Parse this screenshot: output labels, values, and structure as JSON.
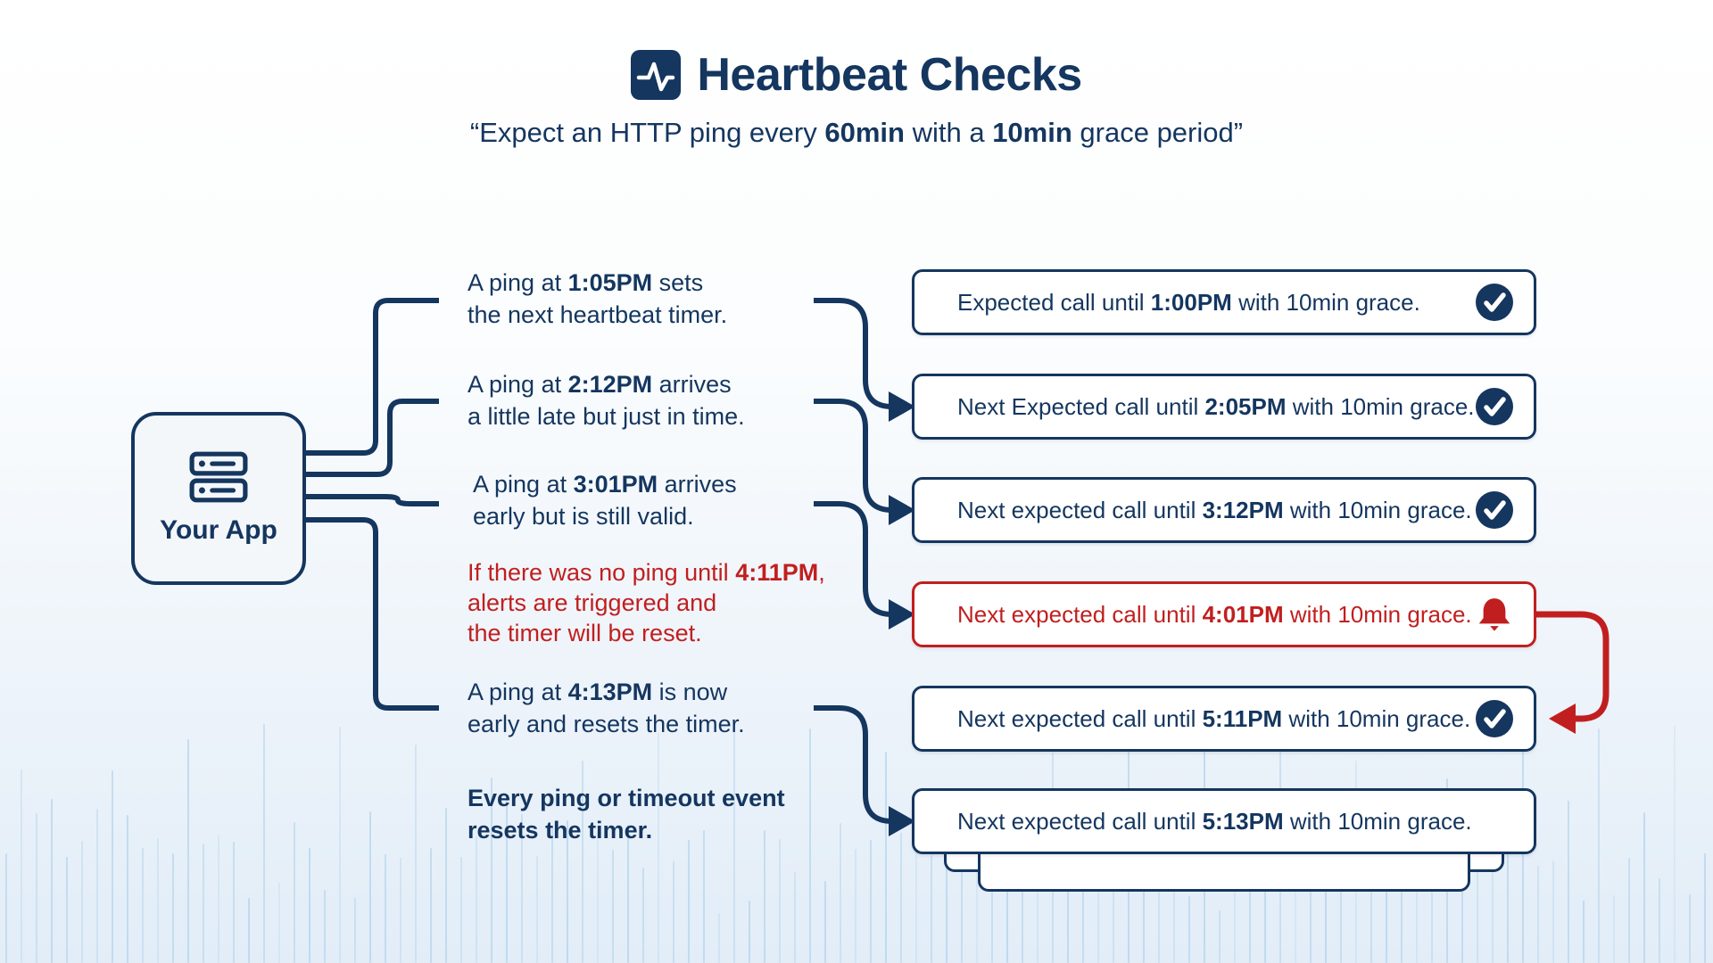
{
  "title": {
    "text": "Heartbeat Checks",
    "icon": "pulse-icon"
  },
  "subtitle": {
    "segments": [
      {
        "t": "“Expect an HTTP ping every "
      },
      {
        "t": "60min",
        "b": 1
      },
      {
        "t": " with a "
      },
      {
        "t": "10min",
        "b": 1
      },
      {
        "t": " grace period”"
      }
    ]
  },
  "app": {
    "label": "Your App",
    "icon": "server-icon"
  },
  "events": [
    {
      "tone": "navy",
      "lines": [
        [
          {
            "t": "A ping at "
          },
          {
            "t": "1:05PM",
            "b": 1
          },
          {
            "t": " sets"
          }
        ],
        [
          {
            "t": "the next heartbeat timer."
          }
        ]
      ]
    },
    {
      "tone": "navy",
      "lines": [
        [
          {
            "t": "A ping at "
          },
          {
            "t": "2:12PM",
            "b": 1
          },
          {
            "t": " arrives"
          }
        ],
        [
          {
            "t": "a little late but just in time."
          }
        ]
      ]
    },
    {
      "tone": "navy",
      "lines": [
        [
          {
            "t": "A ping at "
          },
          {
            "t": "3:01PM",
            "b": 1
          },
          {
            "t": " arrives"
          }
        ],
        [
          {
            "t": "early but is still valid."
          }
        ]
      ]
    },
    {
      "tone": "red",
      "lines": [
        [
          {
            "t": "If there was no ping until "
          },
          {
            "t": "4:11PM",
            "b": 1
          },
          {
            "t": ","
          }
        ],
        [
          {
            "t": "alerts are triggered and"
          }
        ],
        [
          {
            "t": "the timer will be reset."
          }
        ]
      ]
    },
    {
      "tone": "navy",
      "lines": [
        [
          {
            "t": "A ping at "
          },
          {
            "t": "4:13PM",
            "b": 1
          },
          {
            "t": " is now"
          }
        ],
        [
          {
            "t": "early and resets the timer."
          }
        ]
      ]
    },
    {
      "tone": "navy",
      "lines": [
        [
          {
            "t": "Every ping or timeout event",
            "b": 1
          }
        ],
        [
          {
            "t": "resets the timer.",
            "b": 1
          }
        ]
      ]
    }
  ],
  "boxes": [
    {
      "icon": "check-badge-icon",
      "tone": "navy",
      "segments": [
        {
          "t": "Expected call until "
        },
        {
          "t": "1:00PM",
          "b": 1
        },
        {
          "t": " with 10min grace."
        }
      ]
    },
    {
      "icon": "check-badge-icon",
      "tone": "navy",
      "segments": [
        {
          "t": "Next Expected call until "
        },
        {
          "t": "2:05PM",
          "b": 1
        },
        {
          "t": " with 10min grace."
        }
      ]
    },
    {
      "icon": "check-badge-icon",
      "tone": "navy",
      "segments": [
        {
          "t": "Next expected call until "
        },
        {
          "t": "3:12PM",
          "b": 1
        },
        {
          "t": " with 10min grace."
        }
      ]
    },
    {
      "icon": "bell-icon",
      "tone": "red",
      "segments": [
        {
          "t": "Next expected call until "
        },
        {
          "t": "4:01PM",
          "b": 1
        },
        {
          "t": " with 10min grace."
        }
      ]
    },
    {
      "icon": "check-badge-icon",
      "tone": "navy",
      "segments": [
        {
          "t": "Next expected call until "
        },
        {
          "t": "5:11PM",
          "b": 1
        },
        {
          "t": " with 10min grace."
        }
      ]
    },
    {
      "icon": null,
      "tone": "navy",
      "segments": [
        {
          "t": "Next expected call until "
        },
        {
          "t": "5:13PM",
          "b": 1
        },
        {
          "t": " with 10min grace."
        }
      ]
    }
  ],
  "colors": {
    "navy": "#14365f",
    "red": "#c11f1f",
    "box_bg": "#ffffff",
    "app_bg": "#f4f7fa",
    "bar": "#a9cde9"
  }
}
